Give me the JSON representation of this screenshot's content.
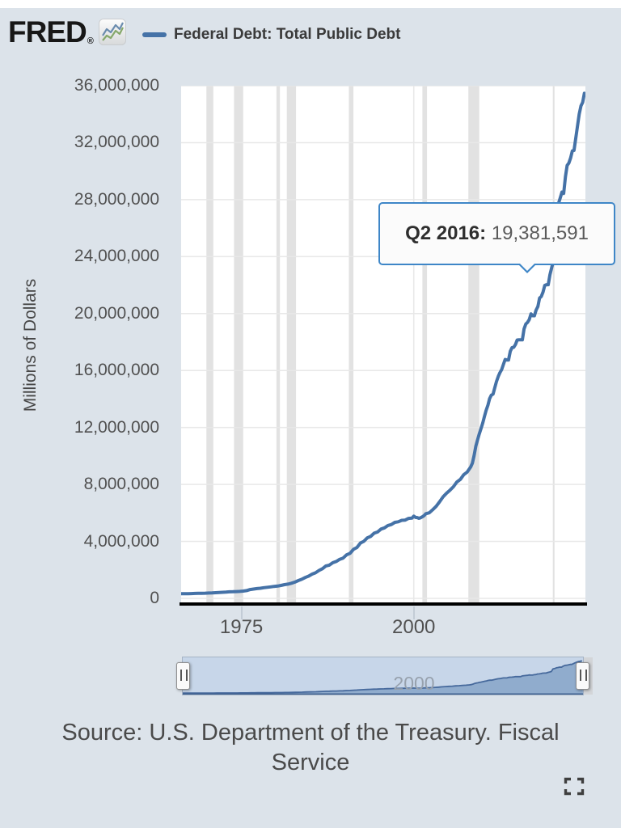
{
  "header": {
    "logo_text": "FRED",
    "logo_registered": "®",
    "legend_label": "Federal Debt: Total Public Debt"
  },
  "tooltip": {
    "label": "Q2 2016:",
    "value": "19,381,591"
  },
  "slider": {
    "label": "2000"
  },
  "source": {
    "text": "Source: U.S. Department of the Treasury. Fiscal Service"
  },
  "icons": {
    "fred_logo_chart_icon": "line-chart-icon",
    "fullscreen_icon": "fullscreen-expand-icon",
    "slider_handle_icon": "drag-grip-icon"
  },
  "colors": {
    "page_background": "#dce3ea",
    "plot_background": "#ffffff",
    "line": "#4572a7",
    "gridline": "#e8e8e8",
    "recession_band": "#e2e2e2",
    "axis_line": "#000000",
    "tooltip_border": "#3e86c7",
    "slider_background": "#c7d6e9",
    "slider_area_fill": "rgba(69,114,167,0.42)",
    "slider_baseline": "#3f618f",
    "tick_text": "#515151"
  },
  "chart_data": {
    "type": "line",
    "title": "Federal Debt: Total Public Debt",
    "xlabel": "",
    "ylabel": "Millions of Dollars",
    "x_domain": [
      1966.25,
      2024.9
    ],
    "ylim": [
      0,
      36000000
    ],
    "grid": true,
    "legend_position": "top",
    "x_ticks": [
      {
        "value": 1975,
        "label": "1975"
      },
      {
        "value": 2000,
        "label": "2000"
      }
    ],
    "y_ticks": [
      {
        "value": 0,
        "label": "0"
      },
      {
        "value": 4000000,
        "label": "4,000,000"
      },
      {
        "value": 8000000,
        "label": "8,000,000"
      },
      {
        "value": 12000000,
        "label": "12,000,000"
      },
      {
        "value": 16000000,
        "label": "16,000,000"
      },
      {
        "value": 20000000,
        "label": "20,000,000"
      },
      {
        "value": 24000000,
        "label": "24,000,000"
      },
      {
        "value": 28000000,
        "label": "28,000,000"
      },
      {
        "value": 32000000,
        "label": "32,000,000"
      },
      {
        "value": 36000000,
        "label": "36,000,000"
      }
    ],
    "recessions": [
      [
        1969.92,
        1970.92
      ],
      [
        1973.92,
        1975.25
      ],
      [
        1980.08,
        1980.58
      ],
      [
        1981.58,
        1982.92
      ],
      [
        1990.58,
        1991.25
      ],
      [
        2001.25,
        2001.92
      ],
      [
        2007.92,
        2009.5
      ],
      [
        2020.17,
        2020.42
      ]
    ],
    "highlight_point": {
      "x": 2016.5,
      "quarter": "Q2 2016",
      "value": 19381591
    },
    "series": [
      {
        "name": "Federal Debt: Total Public Debt",
        "points": [
          [
            1966.25,
            320999
          ],
          [
            1966.75,
            324748
          ],
          [
            1967.25,
            322993
          ],
          [
            1967.75,
            334201
          ],
          [
            1968.25,
            347578
          ],
          [
            1968.75,
            353720
          ],
          [
            1969.25,
            356835
          ],
          [
            1969.75,
            360683
          ],
          [
            1970.25,
            372600
          ],
          [
            1970.75,
            382603
          ],
          [
            1971.25,
            398129
          ],
          [
            1971.75,
            412085
          ],
          [
            1972.25,
            427260
          ],
          [
            1972.75,
            437329
          ],
          [
            1973.25,
            458141
          ],
          [
            1973.75,
            468426
          ],
          [
            1974.25,
            475059
          ],
          [
            1974.75,
            486247
          ],
          [
            1975.25,
            508957
          ],
          [
            1975.75,
            544131
          ],
          [
            1976.25,
            620432
          ],
          [
            1976.75,
            653544
          ],
          [
            1977.25,
            685552
          ],
          [
            1977.75,
            709138
          ],
          [
            1978.25,
            749000
          ],
          [
            1978.75,
            776602
          ],
          [
            1979.25,
            804675
          ],
          [
            1979.75,
            839200
          ],
          [
            1980.25,
            863451
          ],
          [
            1980.75,
            907701
          ],
          [
            1981.25,
            963962
          ],
          [
            1981.75,
            997855
          ],
          [
            1982.25,
            1059567
          ],
          [
            1982.75,
            1142034
          ],
          [
            1983.25,
            1249322
          ],
          [
            1983.75,
            1340467
          ],
          [
            1984.25,
            1463068
          ],
          [
            1984.75,
            1559570
          ],
          [
            1985.25,
            1703373
          ],
          [
            1985.75,
            1794915
          ],
          [
            1986.25,
            1957862
          ],
          [
            1986.75,
            2082574
          ],
          [
            1987.25,
            2274861
          ],
          [
            1987.75,
            2336340
          ],
          [
            1988.25,
            2503012
          ],
          [
            1988.75,
            2586879
          ],
          [
            1989.25,
            2740864
          ],
          [
            1989.75,
            2829770
          ],
          [
            1990.25,
            3052619
          ],
          [
            1990.75,
            3161223
          ],
          [
            1991.25,
            3441367
          ],
          [
            1991.75,
            3569300
          ],
          [
            1992.25,
            3882926
          ],
          [
            1992.75,
            4002136
          ],
          [
            1993.25,
            4249098
          ],
          [
            1993.75,
            4351223
          ],
          [
            1994.25,
            4575869
          ],
          [
            1994.75,
            4661158
          ],
          [
            1995.25,
            4864116
          ],
          [
            1995.75,
            4951372
          ],
          [
            1996.25,
            5117786
          ],
          [
            1996.75,
            5181465
          ],
          [
            1997.25,
            5335928
          ],
          [
            1997.75,
            5376151
          ],
          [
            1998.25,
            5478189
          ],
          [
            1998.75,
            5498897
          ],
          [
            1999.25,
            5614900
          ],
          [
            1999.75,
            5638656
          ],
          [
            2000,
            5776091
          ],
          [
            2000.25,
            5685105
          ],
          [
            2000.5,
            5674209
          ],
          [
            2000.75,
            5622677
          ],
          [
            2001,
            5662216
          ],
          [
            2001.25,
            5726815
          ],
          [
            2001.5,
            5807463
          ],
          [
            2001.75,
            5943439
          ],
          [
            2002.25,
            6006032
          ],
          [
            2002.75,
            6228236
          ],
          [
            2003.25,
            6460776
          ],
          [
            2003.75,
            6783231
          ],
          [
            2004.25,
            7131068
          ],
          [
            2004.75,
            7379053
          ],
          [
            2005.25,
            7596143
          ],
          [
            2005.75,
            7836496
          ],
          [
            2006.25,
            8170424
          ],
          [
            2006.75,
            8353866
          ],
          [
            2007.25,
            8680224
          ],
          [
            2007.75,
            8867749
          ],
          [
            2008.25,
            9229172
          ],
          [
            2008.5,
            9492006
          ],
          [
            2008.75,
            10024725
          ],
          [
            2009,
            10699805
          ],
          [
            2009.25,
            11126941
          ],
          [
            2009.5,
            11545275
          ],
          [
            2009.75,
            11909829
          ],
          [
            2010,
            12311349
          ],
          [
            2010.25,
            12773123
          ],
          [
            2010.5,
            13201792
          ],
          [
            2010.75,
            13561623
          ],
          [
            2011,
            14025215
          ],
          [
            2011.25,
            14270115
          ],
          [
            2011.5,
            14343088
          ],
          [
            2011.75,
            14790340
          ],
          [
            2012,
            15222940
          ],
          [
            2012.25,
            15582078
          ],
          [
            2012.5,
            15855500
          ],
          [
            2012.75,
            16066241
          ],
          [
            2013,
            16432730
          ],
          [
            2013.25,
            16771378
          ],
          [
            2013.5,
            16738184
          ],
          [
            2013.75,
            16738650
          ],
          [
            2014,
            17352000
          ],
          [
            2014.25,
            17601227
          ],
          [
            2014.5,
            17632606
          ],
          [
            2014.75,
            17824071
          ],
          [
            2015,
            18141444
          ],
          [
            2015.25,
            18152056
          ],
          [
            2015.5,
            18151998
          ],
          [
            2015.75,
            18150617
          ],
          [
            2016,
            18922179
          ],
          [
            2016.25,
            19264939
          ],
          [
            2016.5,
            19381591
          ],
          [
            2016.75,
            19573445
          ],
          [
            2017,
            19976827
          ],
          [
            2017.25,
            19846420
          ],
          [
            2017.5,
            19844554
          ],
          [
            2017.75,
            20244900
          ],
          [
            2018,
            20492747
          ],
          [
            2018.25,
            21089643
          ],
          [
            2018.5,
            21195070
          ],
          [
            2018.75,
            21516058
          ],
          [
            2019,
            21974096
          ],
          [
            2019.25,
            22023544
          ],
          [
            2019.5,
            22027558
          ],
          [
            2019.75,
            22719402
          ],
          [
            2020,
            23201380
          ],
          [
            2020.25,
            23686910
          ],
          [
            2020.5,
            26477444
          ],
          [
            2020.75,
            26945391
          ],
          [
            2021,
            27747798
          ],
          [
            2021.25,
            28132570
          ],
          [
            2021.5,
            28529436
          ],
          [
            2021.75,
            28428919
          ],
          [
            2022,
            29617215
          ],
          [
            2022.25,
            30400690
          ],
          [
            2022.5,
            30568581
          ],
          [
            2022.75,
            30928912
          ],
          [
            2023,
            31419689
          ],
          [
            2023.25,
            31458438
          ],
          [
            2023.5,
            32332274
          ],
          [
            2023.75,
            33167334
          ],
          [
            2024,
            34001494
          ],
          [
            2024.25,
            34586500
          ],
          [
            2024.5,
            34832500
          ],
          [
            2024.75,
            35464673
          ]
        ]
      }
    ]
  }
}
